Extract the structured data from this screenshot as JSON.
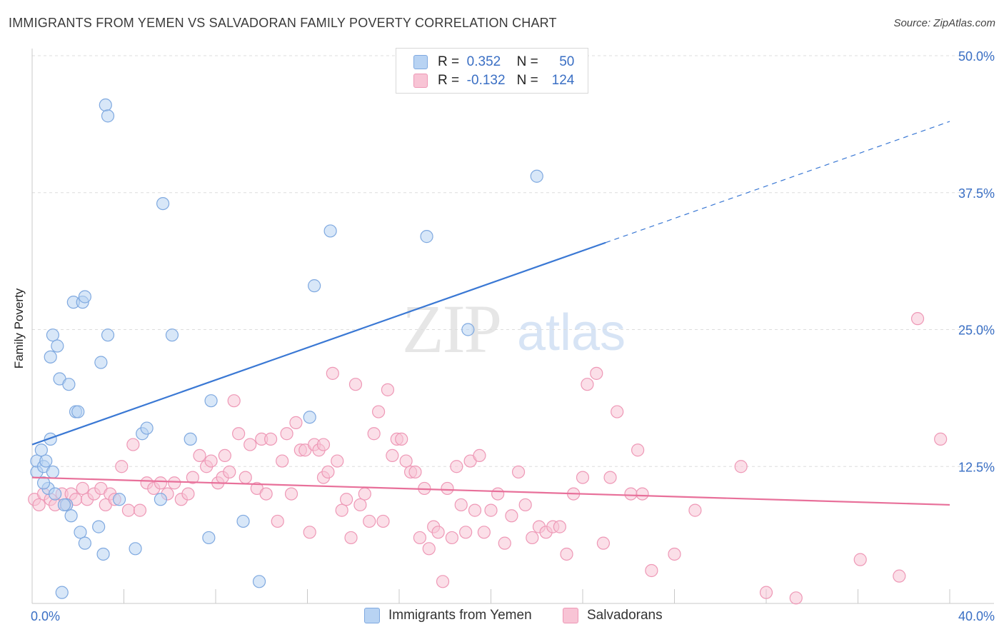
{
  "title": "IMMIGRANTS FROM YEMEN VS SALVADORAN FAMILY POVERTY CORRELATION CHART",
  "source": "Source: ZipAtlas.com",
  "watermark": {
    "zip": "ZIP",
    "atlas": "atlas"
  },
  "legend": {
    "rows": [
      {
        "r_label": "R =",
        "r_value": "0.352",
        "n_label": "N =",
        "n_value": "50"
      },
      {
        "r_label": "R =",
        "r_value": "-0.132",
        "n_label": "N =",
        "n_value": "124"
      }
    ]
  },
  "bottom_legend": {
    "items": [
      {
        "label": "Immigrants from Yemen"
      },
      {
        "label": "Salvadorans"
      }
    ]
  },
  "colors": {
    "blue": "#3a78d4",
    "blue_fill": "#b8d3f3",
    "blue_stroke": "#7fa9e0",
    "pink": "#e8709a",
    "pink_fill": "#f8c4d5",
    "pink_stroke": "#ee98b6",
    "tick_text": "#3a6fc4",
    "grid": "#dddddd"
  },
  "chart_data": {
    "type": "scatter",
    "title": "IMMIGRANTS FROM YEMEN VS SALVADORAN FAMILY POVERTY CORRELATION CHART",
    "xlabel": "",
    "ylabel": "Family Poverty",
    "xlim": [
      0,
      40
    ],
    "ylim": [
      0,
      50
    ],
    "x_tick_labels": [
      "0.0%",
      "40.0%"
    ],
    "y_ticks": [
      12.5,
      25.0,
      37.5,
      50.0
    ],
    "y_tick_labels": [
      "12.5%",
      "25.0%",
      "37.5%",
      "50.0%"
    ],
    "grid": true,
    "legend_position": "top-center",
    "series": [
      {
        "name": "Immigrants from Yemen",
        "color": "#3a78d4",
        "r": 0.352,
        "n": 50,
        "trend": {
          "x_start": 0,
          "y_start": 14.5,
          "x_solid_end": 25.0,
          "x_end": 40,
          "y_end": 44.0
        },
        "points": [
          [
            0.2,
            12.0
          ],
          [
            0.2,
            13.0
          ],
          [
            0.4,
            14.0
          ],
          [
            0.5,
            12.5
          ],
          [
            0.6,
            13.0
          ],
          [
            0.7,
            10.5
          ],
          [
            0.8,
            15.0
          ],
          [
            0.9,
            12.0
          ],
          [
            0.8,
            22.5
          ],
          [
            0.9,
            24.5
          ],
          [
            1.1,
            23.5
          ],
          [
            1.2,
            20.5
          ],
          [
            1.6,
            20.0
          ],
          [
            1.8,
            27.5
          ],
          [
            2.2,
            27.5
          ],
          [
            2.3,
            28.0
          ],
          [
            1.9,
            17.5
          ],
          [
            2.0,
            17.5
          ],
          [
            1.5,
            9.0
          ],
          [
            1.7,
            8.0
          ],
          [
            2.1,
            6.5
          ],
          [
            2.3,
            5.5
          ],
          [
            1.3,
            1.0
          ],
          [
            2.9,
            7.0
          ],
          [
            3.1,
            4.5
          ],
          [
            3.0,
            22.0
          ],
          [
            3.3,
            24.5
          ],
          [
            3.2,
            45.5
          ],
          [
            3.3,
            44.5
          ],
          [
            3.8,
            9.5
          ],
          [
            4.5,
            5.0
          ],
          [
            4.8,
            15.5
          ],
          [
            5.0,
            16.0
          ],
          [
            5.6,
            9.5
          ],
          [
            5.7,
            36.5
          ],
          [
            6.1,
            24.5
          ],
          [
            6.9,
            15.0
          ],
          [
            7.7,
            6.0
          ],
          [
            7.8,
            18.5
          ],
          [
            9.2,
            7.5
          ],
          [
            9.9,
            2.0
          ],
          [
            12.1,
            17.0
          ],
          [
            12.3,
            29.0
          ],
          [
            13.0,
            34.0
          ],
          [
            17.2,
            33.5
          ],
          [
            19.0,
            25.0
          ],
          [
            22.0,
            39.0
          ],
          [
            1.4,
            9.0
          ],
          [
            0.5,
            11.0
          ],
          [
            1.0,
            10.0
          ]
        ]
      },
      {
        "name": "Salvadorans",
        "color": "#e8709a",
        "r": -0.132,
        "n": 124,
        "trend": {
          "x_start": 0,
          "y_start": 11.5,
          "x_end": 40,
          "y_end": 9.0
        },
        "points": [
          [
            0.1,
            9.5
          ],
          [
            0.3,
            9.0
          ],
          [
            0.5,
            10.0
          ],
          [
            0.8,
            9.5
          ],
          [
            1.0,
            9.0
          ],
          [
            1.3,
            10.0
          ],
          [
            1.5,
            9.0
          ],
          [
            1.7,
            10.0
          ],
          [
            1.9,
            9.5
          ],
          [
            2.2,
            10.5
          ],
          [
            2.4,
            9.5
          ],
          [
            2.7,
            10.0
          ],
          [
            3.0,
            10.5
          ],
          [
            3.2,
            9.0
          ],
          [
            3.4,
            10.0
          ],
          [
            3.6,
            9.5
          ],
          [
            3.9,
            12.5
          ],
          [
            4.2,
            8.5
          ],
          [
            4.4,
            14.5
          ],
          [
            4.7,
            8.5
          ],
          [
            5.0,
            11.0
          ],
          [
            5.3,
            10.5
          ],
          [
            5.6,
            11.0
          ],
          [
            5.9,
            10.0
          ],
          [
            6.2,
            11.0
          ],
          [
            6.5,
            9.5
          ],
          [
            6.8,
            10.0
          ],
          [
            7.0,
            11.5
          ],
          [
            7.3,
            13.5
          ],
          [
            7.6,
            12.5
          ],
          [
            7.8,
            13.0
          ],
          [
            8.1,
            11.0
          ],
          [
            8.3,
            11.5
          ],
          [
            8.6,
            12.0
          ],
          [
            8.8,
            18.5
          ],
          [
            9.0,
            15.5
          ],
          [
            9.3,
            11.5
          ],
          [
            9.5,
            14.5
          ],
          [
            9.8,
            10.5
          ],
          [
            10.0,
            15.0
          ],
          [
            10.2,
            10.0
          ],
          [
            10.4,
            15.0
          ],
          [
            10.7,
            7.5
          ],
          [
            10.9,
            13.0
          ],
          [
            11.1,
            15.5
          ],
          [
            11.3,
            10.0
          ],
          [
            11.5,
            16.5
          ],
          [
            11.7,
            14.0
          ],
          [
            11.9,
            14.0
          ],
          [
            12.1,
            6.5
          ],
          [
            12.3,
            14.5
          ],
          [
            12.5,
            14.0
          ],
          [
            12.7,
            11.5
          ],
          [
            12.9,
            12.0
          ],
          [
            13.1,
            21.0
          ],
          [
            13.3,
            13.0
          ],
          [
            13.5,
            8.5
          ],
          [
            13.7,
            9.5
          ],
          [
            13.9,
            6.0
          ],
          [
            14.1,
            20.0
          ],
          [
            14.3,
            9.0
          ],
          [
            14.5,
            10.0
          ],
          [
            14.7,
            7.5
          ],
          [
            14.9,
            15.5
          ],
          [
            15.1,
            17.5
          ],
          [
            15.3,
            7.5
          ],
          [
            15.5,
            19.5
          ],
          [
            15.7,
            13.5
          ],
          [
            15.9,
            15.0
          ],
          [
            16.1,
            15.0
          ],
          [
            16.3,
            13.0
          ],
          [
            16.5,
            12.0
          ],
          [
            16.7,
            12.0
          ],
          [
            16.9,
            6.0
          ],
          [
            17.1,
            10.5
          ],
          [
            17.3,
            5.0
          ],
          [
            17.5,
            7.0
          ],
          [
            17.7,
            6.5
          ],
          [
            17.9,
            2.0
          ],
          [
            18.1,
            10.5
          ],
          [
            18.3,
            6.0
          ],
          [
            18.5,
            12.5
          ],
          [
            18.7,
            9.0
          ],
          [
            18.9,
            6.5
          ],
          [
            19.1,
            13.0
          ],
          [
            19.3,
            8.5
          ],
          [
            19.5,
            13.5
          ],
          [
            19.7,
            6.5
          ],
          [
            20.0,
            8.5
          ],
          [
            20.3,
            10.0
          ],
          [
            20.6,
            5.5
          ],
          [
            20.9,
            8.0
          ],
          [
            21.2,
            12.0
          ],
          [
            21.5,
            9.0
          ],
          [
            21.8,
            6.0
          ],
          [
            22.1,
            7.0
          ],
          [
            22.4,
            6.5
          ],
          [
            22.7,
            7.0
          ],
          [
            23.0,
            7.0
          ],
          [
            23.3,
            4.5
          ],
          [
            23.6,
            10.0
          ],
          [
            24.0,
            11.5
          ],
          [
            24.2,
            20.0
          ],
          [
            24.6,
            21.0
          ],
          [
            24.9,
            5.5
          ],
          [
            25.2,
            11.5
          ],
          [
            25.5,
            17.5
          ],
          [
            26.1,
            10.0
          ],
          [
            26.4,
            14.0
          ],
          [
            26.6,
            10.0
          ],
          [
            27.0,
            3.0
          ],
          [
            28.0,
            4.5
          ],
          [
            28.9,
            8.5
          ],
          [
            30.9,
            12.5
          ],
          [
            32.0,
            1.0
          ],
          [
            33.3,
            0.5
          ],
          [
            36.1,
            4.0
          ],
          [
            37.8,
            2.5
          ],
          [
            38.6,
            26.0
          ],
          [
            39.6,
            15.0
          ],
          [
            8.4,
            13.5
          ],
          [
            12.7,
            14.5
          ]
        ]
      }
    ]
  }
}
